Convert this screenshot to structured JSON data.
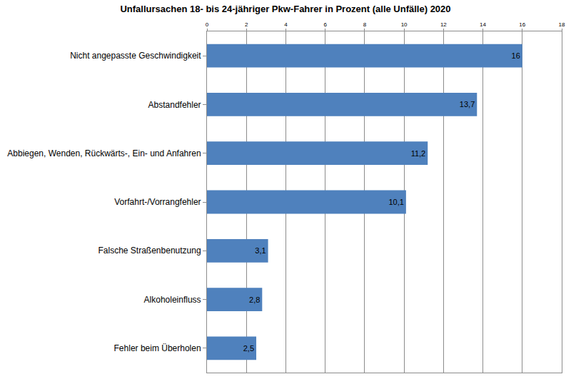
{
  "chart_data": {
    "type": "bar",
    "orientation": "horizontal",
    "title": "Unfallursachen 18- bis 24-jähriger Pkw-Fahrer in Prozent (alle Unfälle) 2020",
    "categories": [
      "Nicht angepasste Geschwindigkeit",
      "Abstandfehler",
      "Abbiegen, Wenden, Rückwärts-, Ein- und Anfahren",
      "Vorfahrt-/Vorrangfehler",
      "Falsche Straßenbenutzung",
      "Alkoholeinfluss",
      "Fehler beim Überholen"
    ],
    "values": [
      16,
      13.7,
      11.2,
      10.1,
      3.1,
      2.8,
      2.5
    ],
    "value_labels": [
      "16",
      "13,7",
      "11,2",
      "10,1",
      "3,1",
      "2,8",
      "2,5"
    ],
    "color": "#4f81bd",
    "xlim": [
      0,
      18
    ],
    "xticks": [
      0,
      2,
      4,
      6,
      8,
      10,
      12,
      14,
      16,
      18
    ],
    "grid": true,
    "data_labels": true
  }
}
